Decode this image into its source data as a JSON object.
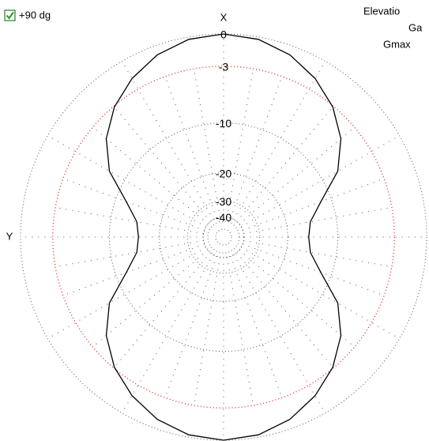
{
  "chart_data": {
    "type": "polar",
    "checkbox_label": "+90 dg",
    "x_axis_label": "X",
    "y_axis_label": "Y",
    "info_lines": [
      "Elevatio",
      "Ga",
      "Gmax"
    ],
    "theta": [
      0,
      10,
      20,
      30,
      40,
      50,
      60,
      70,
      80,
      90,
      100,
      110,
      120,
      130,
      140,
      150,
      160,
      170,
      180,
      190,
      200,
      210,
      220,
      230,
      240,
      250,
      260,
      270,
      280,
      290,
      300,
      310,
      320,
      330,
      340,
      350
    ],
    "values": [
      0,
      -0.2,
      -0.8,
      -1.8,
      -3.1,
      -4.9,
      -7.5,
      -11.7,
      -14.5,
      -15.1,
      -14.5,
      -11.7,
      -7.5,
      -4.9,
      -3.1,
      -1.8,
      -0.8,
      -0.2,
      0,
      -0.2,
      -0.8,
      -1.8,
      -3.1,
      -4.9,
      -7.5,
      -11.7,
      -14.5,
      -15.1,
      -14.5,
      -11.7,
      -7.5,
      -4.9,
      -3.1,
      -1.8,
      -0.8,
      -0.2
    ],
    "color": "#000000",
    "rticks": [
      0,
      -3,
      -10,
      -20,
      -30,
      -40
    ],
    "highlight_tick": -3,
    "highlight_color": "#e02020",
    "grid_color": "#555555"
  }
}
